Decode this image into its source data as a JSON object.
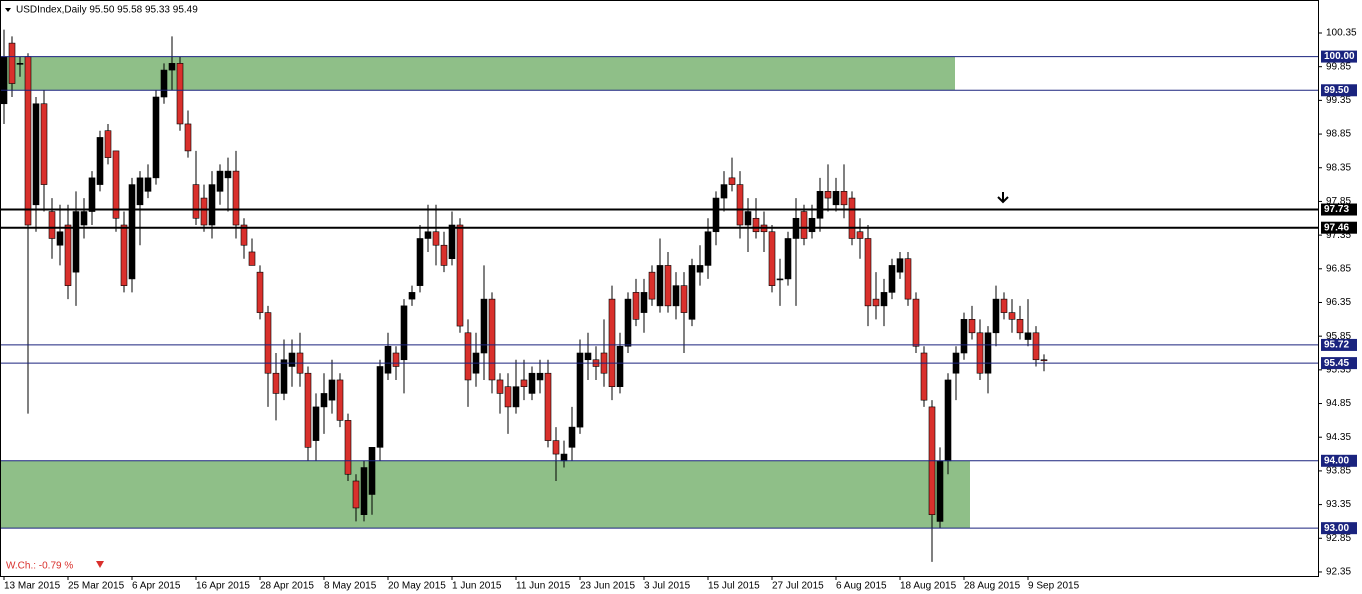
{
  "chart_data": {
    "type": "candlestick",
    "title": "USDIndex,Daily  95.50 95.58 95.33 95.49",
    "annotation": "W.Ch.: -0.79 %",
    "categories": [
      "13 Mar 2015",
      null,
      null,
      null,
      null,
      null,
      null,
      null,
      "25 Mar 2015",
      null,
      null,
      null,
      null,
      null,
      null,
      null,
      "6 Apr 2015",
      null,
      null,
      null,
      null,
      null,
      null,
      null,
      "16 Apr 2015",
      null,
      null,
      null,
      null,
      null,
      null,
      null,
      "28 Apr 2015",
      null,
      null,
      null,
      null,
      null,
      null,
      null,
      "8 May 2015",
      null,
      null,
      null,
      null,
      null,
      null,
      null,
      "20 May 2015",
      null,
      null,
      null,
      null,
      null,
      null,
      null,
      "1 Jun 2015",
      null,
      null,
      null,
      null,
      null,
      null,
      null,
      "11 Jun 2015",
      null,
      null,
      null,
      null,
      null,
      null,
      null,
      "23 Jun 2015",
      null,
      null,
      null,
      null,
      null,
      null,
      null,
      "3 Jul 2015",
      null,
      null,
      null,
      null,
      null,
      null,
      null,
      "15 Jul 2015",
      null,
      null,
      null,
      null,
      null,
      null,
      null,
      "27 Jul 2015",
      null,
      null,
      null,
      null,
      null,
      null,
      null,
      "6 Aug 2015",
      null,
      null,
      null,
      null,
      null,
      null,
      null,
      "18 Aug 2015",
      null,
      null,
      null,
      null,
      null,
      null,
      null,
      "28 Aug 2015",
      null,
      null,
      null,
      null,
      null,
      null,
      null,
      "9 Sep 2015",
      null,
      null
    ],
    "open": [
      99.3,
      100.2,
      99.9,
      100.0,
      97.8,
      99.3,
      97.7,
      97.2,
      97.5,
      96.8,
      97.5,
      97.7,
      98.1,
      98.9,
      98.6,
      97.5,
      96.7,
      97.8,
      98.0,
      98.2,
      99.4,
      99.8,
      99.9,
      99.0,
      98.1,
      97.9,
      97.5,
      98.0,
      98.2,
      98.3,
      97.5,
      97.1,
      96.8,
      96.2,
      95.3,
      95.0,
      95.4,
      95.6,
      95.3,
      94.3,
      94.8,
      94.9,
      95.2,
      94.6,
      93.7,
      93.2,
      93.5,
      94.2,
      95.3,
      95.6,
      95.5,
      96.4,
      96.6,
      97.3,
      97.4,
      97.2,
      97.0,
      97.5,
      95.9,
      95.3,
      95.6,
      96.4,
      95.2,
      95.1,
      94.8,
      95.2,
      95.0,
      95.2,
      95.3,
      94.3,
      94.0,
      94.2,
      94.5,
      95.5,
      95.5,
      95.6,
      96.4,
      95.1,
      95.7,
      96.5,
      96.2,
      96.8,
      96.3,
      96.9,
      96.3,
      96.6,
      96.1,
      96.8,
      96.9,
      97.4,
      97.9,
      98.2,
      98.1,
      97.5,
      97.6,
      97.5,
      97.4,
      96.7,
      96.7,
      97.3,
      97.7,
      97.4,
      97.6,
      98.0,
      97.8,
      98.0,
      97.9,
      97.4,
      97.3,
      96.4,
      96.3,
      96.5,
      96.8,
      97.0,
      96.4,
      95.6,
      94.8,
      93.1,
      94.0,
      95.3,
      95.6,
      96.1,
      95.9,
      95.3,
      95.9,
      96.4,
      96.2,
      96.1,
      95.8,
      95.9,
      95.5
    ],
    "high": [
      100.4,
      100.3,
      100.0,
      100.05,
      99.4,
      99.5,
      97.9,
      97.8,
      97.8,
      98.0,
      97.9,
      98.3,
      98.9,
      99.0,
      98.6,
      97.7,
      98.2,
      98.3,
      98.4,
      99.5,
      99.9,
      100.3,
      100.0,
      99.2,
      98.6,
      98.1,
      98.3,
      98.4,
      98.5,
      98.6,
      97.6,
      97.3,
      96.9,
      96.3,
      95.6,
      95.8,
      95.8,
      95.9,
      95.4,
      95.0,
      95.3,
      95.5,
      95.3,
      94.7,
      93.8,
      94.0,
      94.2,
      95.5,
      95.9,
      95.7,
      96.4,
      96.6,
      97.5,
      97.8,
      97.8,
      97.4,
      97.7,
      97.6,
      96.1,
      95.9,
      96.9,
      96.5,
      95.3,
      95.3,
      95.5,
      95.5,
      95.4,
      95.5,
      95.5,
      94.5,
      94.3,
      94.8,
      95.8,
      95.9,
      95.7,
      96.1,
      96.6,
      95.9,
      96.5,
      96.7,
      96.7,
      96.9,
      97.3,
      97.1,
      96.8,
      96.8,
      97.0,
      97.2,
      97.6,
      98.0,
      98.3,
      98.5,
      98.3,
      97.9,
      97.9,
      97.7,
      97.5,
      97.0,
      97.4,
      97.9,
      97.8,
      97.8,
      98.2,
      98.4,
      98.2,
      98.4,
      98.0,
      97.6,
      97.5,
      96.8,
      96.7,
      97.0,
      97.1,
      97.1,
      96.5,
      95.7,
      94.9,
      94.2,
      95.3,
      95.7,
      96.2,
      96.3,
      96.1,
      96.0,
      96.6,
      96.5,
      96.4,
      96.3,
      96.4,
      96.0,
      95.58
    ],
    "low": [
      99.0,
      99.4,
      99.7,
      94.7,
      97.4,
      97.7,
      97.0,
      96.9,
      96.4,
      96.3,
      97.3,
      97.5,
      98.0,
      98.4,
      97.4,
      96.5,
      96.5,
      97.2,
      97.9,
      98.1,
      99.3,
      99.5,
      98.9,
      98.5,
      97.5,
      97.4,
      97.3,
      97.8,
      97.7,
      97.3,
      97.0,
      96.9,
      96.1,
      94.8,
      94.6,
      94.9,
      95.1,
      95.1,
      94.0,
      94.0,
      94.4,
      94.7,
      94.5,
      93.7,
      93.1,
      93.1,
      93.2,
      94.0,
      95.2,
      95.2,
      95.0,
      96.3,
      96.5,
      97.1,
      96.9,
      96.8,
      96.9,
      95.9,
      94.8,
      95.1,
      95.2,
      95.0,
      94.7,
      94.4,
      94.7,
      94.9,
      94.9,
      95.0,
      94.2,
      93.7,
      93.9,
      94.0,
      94.4,
      95.2,
      95.2,
      95.1,
      94.9,
      95.0,
      95.6,
      96.0,
      95.9,
      96.3,
      96.2,
      96.2,
      96.1,
      95.6,
      96.0,
      96.6,
      96.7,
      97.2,
      97.7,
      98.0,
      97.3,
      97.1,
      97.3,
      97.1,
      96.5,
      96.3,
      96.6,
      96.3,
      97.2,
      97.3,
      97.4,
      97.7,
      97.7,
      97.6,
      97.2,
      97.0,
      96.0,
      96.1,
      96.0,
      96.4,
      96.7,
      96.3,
      95.6,
      94.8,
      92.5,
      93.0,
      93.8,
      94.9,
      95.5,
      95.8,
      95.2,
      95.0,
      95.7,
      96.1,
      95.9,
      95.8,
      95.7,
      95.4,
      95.33
    ],
    "close": [
      100.0,
      99.6,
      99.9,
      97.5,
      99.3,
      98.1,
      97.3,
      97.4,
      96.6,
      97.7,
      97.7,
      98.2,
      98.8,
      98.5,
      97.6,
      96.6,
      98.1,
      98.2,
      98.2,
      99.4,
      99.8,
      99.9,
      99.0,
      98.6,
      97.6,
      97.5,
      98.1,
      98.3,
      98.3,
      97.5,
      97.2,
      96.9,
      96.2,
      95.3,
      95.0,
      95.5,
      95.6,
      95.3,
      94.2,
      94.8,
      95.0,
      95.2,
      94.6,
      93.8,
      93.3,
      93.9,
      94.2,
      95.4,
      95.7,
      95.4,
      96.3,
      96.5,
      97.3,
      97.4,
      97.2,
      96.9,
      97.5,
      96.0,
      95.2,
      95.6,
      96.4,
      95.2,
      95.0,
      94.8,
      95.1,
      95.1,
      95.3,
      95.3,
      94.3,
      94.1,
      94.1,
      94.5,
      95.6,
      95.6,
      95.4,
      95.3,
      95.1,
      95.7,
      96.4,
      96.1,
      96.5,
      96.4,
      96.9,
      96.3,
      96.6,
      96.2,
      96.9,
      96.9,
      97.4,
      97.9,
      98.1,
      98.1,
      97.5,
      97.7,
      97.4,
      97.4,
      96.6,
      96.7,
      97.3,
      97.6,
      97.3,
      97.6,
      98.0,
      97.9,
      98.0,
      97.8,
      97.3,
      97.3,
      96.3,
      96.3,
      96.5,
      96.9,
      97.0,
      96.4,
      95.7,
      94.9,
      93.2,
      94.0,
      95.2,
      95.6,
      96.1,
      95.9,
      95.3,
      95.9,
      96.4,
      96.2,
      96.1,
      95.9,
      95.9,
      95.5,
      95.49
    ],
    "up_color": "#000000",
    "down_color": "#d9302c",
    "ylim": [
      92.29,
      100.84
    ],
    "yticks": [
      100.35,
      99.85,
      99.35,
      98.85,
      98.35,
      97.85,
      97.35,
      96.85,
      96.35,
      95.85,
      95.35,
      94.85,
      94.35,
      93.85,
      93.35,
      92.85,
      92.35
    ],
    "levels": [
      {
        "value": 100,
        "label": "100.00",
        "color": "#1a237e"
      },
      {
        "value": 99.5,
        "label": "99.50",
        "color": "#1a237e"
      },
      {
        "value": 97.73,
        "label": "97.73",
        "color": "#000000"
      },
      {
        "value": 97.46,
        "label": "97.46",
        "color": "#000000"
      },
      {
        "value": 95.72,
        "label": "95.72",
        "color": "#1a237e"
      },
      {
        "value": 95.45,
        "label": "95.45",
        "color": "#1a237e"
      },
      {
        "value": 94,
        "label": "94.00",
        "color": "#1a237e"
      },
      {
        "value": 93,
        "label": "93.00",
        "color": "#1a237e"
      }
    ],
    "zones": [
      {
        "top": 100,
        "bottom": 99.5,
        "color": "#8fbf88"
      },
      {
        "top": 94,
        "bottom": 93,
        "color": "#8fbf88"
      }
    ],
    "grid": false
  }
}
